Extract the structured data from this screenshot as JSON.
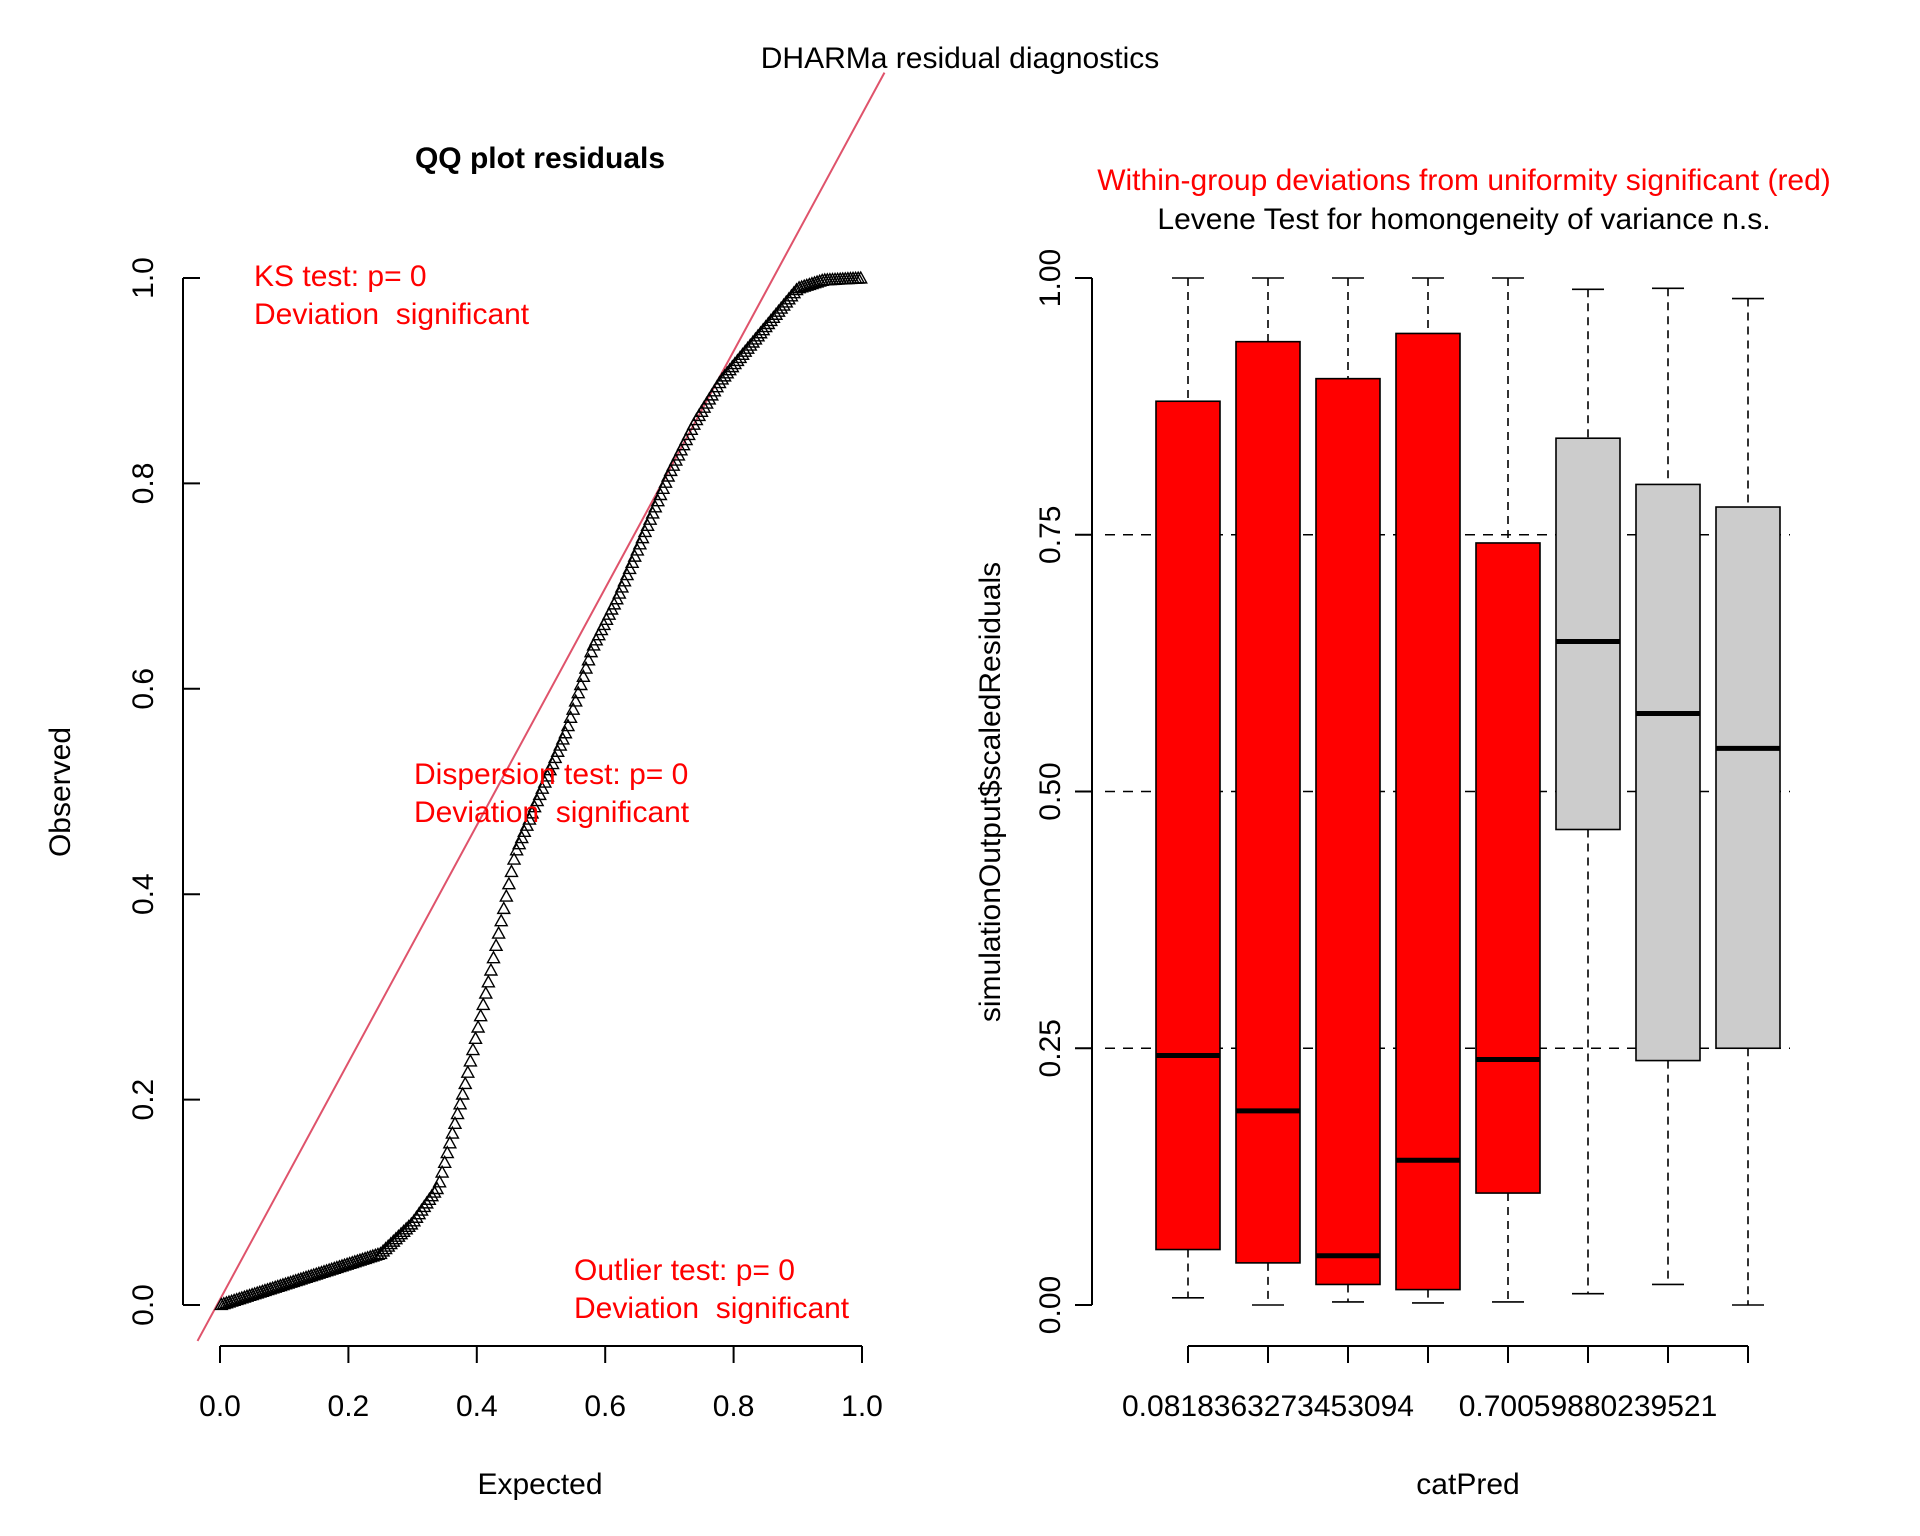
{
  "figure_title": "DHARMa residual diagnostics",
  "colors": {
    "red": "#ff0000",
    "ref_line": "#df536b",
    "box_fill_sig": "#ff0000",
    "box_fill_ns": "#cccccc",
    "axis": "#000000"
  },
  "chart_data": [
    {
      "type": "scatter",
      "title": "QQ plot residuals",
      "xlabel": "Expected",
      "ylabel": "Observed",
      "xlim": [
        0,
        1
      ],
      "ylim": [
        0,
        1
      ],
      "xticks": [
        "0.0",
        "0.2",
        "0.4",
        "0.6",
        "0.8",
        "1.0"
      ],
      "yticks": [
        "0.0",
        "0.2",
        "0.4",
        "0.6",
        "0.8",
        "1.0"
      ],
      "marker": "triangle",
      "reference_line": "y = x",
      "annotations": [
        {
          "id": "ks",
          "lines": [
            "KS test: p= 0",
            "Deviation  significant"
          ]
        },
        {
          "id": "dispersion",
          "lines": [
            "Dispersion test: p= 0",
            "Deviation  significant"
          ]
        },
        {
          "id": "outlier",
          "lines": [
            "Outlier test: p= 0",
            "Deviation  significant"
          ]
        }
      ],
      "curve": [
        [
          0.0,
          0.0
        ],
        [
          0.1,
          0.02
        ],
        [
          0.15,
          0.03
        ],
        [
          0.2,
          0.04
        ],
        [
          0.25,
          0.05
        ],
        [
          0.3,
          0.08
        ],
        [
          0.34,
          0.115
        ],
        [
          0.38,
          0.21
        ],
        [
          0.42,
          0.32
        ],
        [
          0.46,
          0.44
        ],
        [
          0.5,
          0.5
        ],
        [
          0.54,
          0.56
        ],
        [
          0.58,
          0.64
        ],
        [
          0.62,
          0.69
        ],
        [
          0.66,
          0.75
        ],
        [
          0.7,
          0.81
        ],
        [
          0.74,
          0.86
        ],
        [
          0.78,
          0.9
        ],
        [
          0.82,
          0.93
        ],
        [
          0.86,
          0.96
        ],
        [
          0.9,
          0.99
        ],
        [
          0.94,
          0.998
        ],
        [
          1.0,
          1.0
        ]
      ],
      "n_points": 250
    },
    {
      "type": "box",
      "title_lines": [
        {
          "text": "Within-group deviations from uniformity significant (red)",
          "color": "#ff0000"
        },
        {
          "text": "Levene Test for homongeneity of variance n.s.",
          "color": "#000000"
        }
      ],
      "xlabel": "catPred",
      "ylabel": "simulationOutput$scaledResiduals",
      "ylim": [
        0,
        1
      ],
      "yticks": [
        "0.00",
        "0.25",
        "0.50",
        "0.75",
        "1.00"
      ],
      "hlines": [
        0.25,
        0.5,
        0.75
      ],
      "x_tick_labels": [
        {
          "index": 2,
          "text": "0.0818363273453094"
        },
        {
          "index": 6,
          "text": "0.70059880239521"
        }
      ],
      "groups": [
        {
          "whisker_low": 0.007,
          "q1": 0.054,
          "median": 0.243,
          "q3": 0.88,
          "whisker_high": 1.0,
          "significant": true
        },
        {
          "whisker_low": 0.0,
          "q1": 0.041,
          "median": 0.189,
          "q3": 0.938,
          "whisker_high": 1.0,
          "significant": true
        },
        {
          "whisker_low": 0.003,
          "q1": 0.02,
          "median": 0.048,
          "q3": 0.902,
          "whisker_high": 1.0,
          "significant": true
        },
        {
          "whisker_low": 0.002,
          "q1": 0.015,
          "median": 0.141,
          "q3": 0.946,
          "whisker_high": 1.0,
          "significant": true
        },
        {
          "whisker_low": 0.003,
          "q1": 0.109,
          "median": 0.239,
          "q3": 0.742,
          "whisker_high": 1.0,
          "significant": true
        },
        {
          "whisker_low": 0.011,
          "q1": 0.463,
          "median": 0.646,
          "q3": 0.844,
          "whisker_high": 0.989,
          "significant": false
        },
        {
          "whisker_low": 0.02,
          "q1": 0.238,
          "median": 0.576,
          "q3": 0.799,
          "whisker_high": 0.99,
          "significant": false
        },
        {
          "whisker_low": 0.0,
          "q1": 0.25,
          "median": 0.542,
          "q3": 0.777,
          "whisker_high": 0.98,
          "significant": false
        }
      ]
    }
  ]
}
